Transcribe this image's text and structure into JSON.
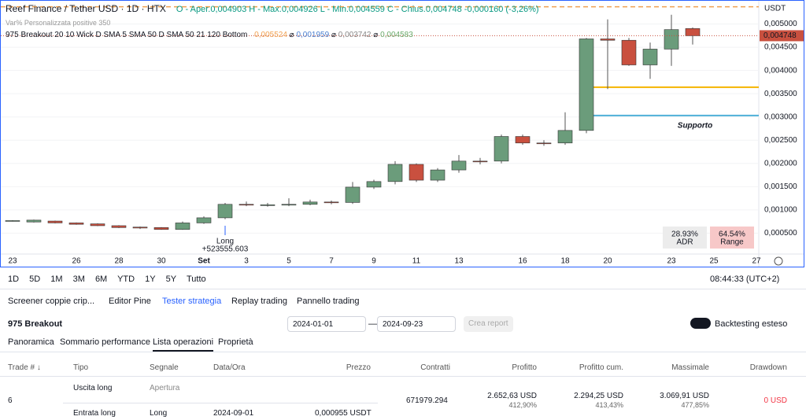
{
  "header": {
    "symbol": "Reef Finance / Tether USD · 1D · HTX",
    "ohlc": "O - Aper.0,004903  H - Max.0,004926  L - Min.0,004559  C - Chius.0,004748  -0,000160 (-3,26%)",
    "variation": "Var% Personalizzata positive 350",
    "indicator": "975 Breakout 20 10 Wick D SMA 5 SMA 50 D SMA 50 21 120 Bottom",
    "indicator_values": [
      "0,005524",
      "0,001959",
      "0,003742",
      "0,004583"
    ],
    "currency": "USDT"
  },
  "chart_data": {
    "type": "candlestick",
    "categories": [
      "23",
      null,
      null,
      "26",
      null,
      "28",
      null,
      "30",
      null,
      "Set",
      null,
      "3",
      null,
      "5",
      null,
      "7",
      null,
      "9",
      null,
      "11",
      null,
      "13",
      null,
      null,
      "16",
      null,
      "18",
      null,
      "20",
      null,
      null,
      "23",
      null,
      "25",
      null,
      "27"
    ],
    "open": [
      0.00076,
      0.00074,
      0.00076,
      0.00072,
      0.0007,
      0.00066,
      0.00063,
      0.00062,
      0.00058,
      0.00072,
      0.00083,
      0.00112,
      0.00111,
      0.00111,
      0.00112,
      0.00117,
      0.00116,
      0.00149,
      0.00161,
      0.00198,
      0.00164,
      0.00186,
      0.00205,
      0.00205,
      0.00258,
      0.00244,
      0.00244,
      0.00271,
      0.00468,
      0.00465,
      0.00412,
      0.00446,
      0.004903,
      null,
      null,
      null
    ],
    "high": [
      0.00078,
      0.00079,
      0.00077,
      0.00073,
      0.00071,
      0.00067,
      0.00064,
      0.00063,
      0.00075,
      0.00086,
      0.00115,
      0.00118,
      0.00115,
      0.00125,
      0.00122,
      0.0012,
      0.0016,
      0.00165,
      0.00205,
      0.002,
      0.0019,
      0.00218,
      0.00212,
      0.00262,
      0.00262,
      0.0025,
      0.0031,
      0.0047,
      0.0051,
      0.0047,
      0.0046,
      0.0052,
      0.004926,
      null,
      null,
      null
    ],
    "low": [
      0.00075,
      0.00073,
      0.00071,
      0.00068,
      0.00065,
      0.00061,
      0.00059,
      0.00057,
      0.00057,
      0.0007,
      0.0008,
      0.00108,
      0.00107,
      0.00108,
      0.0011,
      0.00112,
      0.00113,
      0.00145,
      0.00155,
      0.0016,
      0.0016,
      0.0018,
      0.00198,
      0.002,
      0.0024,
      0.00238,
      0.0024,
      0.00265,
      0.0036,
      0.0041,
      0.00382,
      0.0041,
      0.004559,
      null,
      null,
      null
    ],
    "close": [
      0.00077,
      0.00078,
      0.00072,
      0.00069,
      0.00066,
      0.00062,
      0.00061,
      0.00058,
      0.00072,
      0.00083,
      0.00112,
      0.00111,
      0.00111,
      0.00112,
      0.00117,
      0.00116,
      0.00149,
      0.00161,
      0.00198,
      0.00164,
      0.00186,
      0.00205,
      0.00204,
      0.00258,
      0.00244,
      0.00243,
      0.00271,
      0.00468,
      0.00465,
      0.00412,
      0.00446,
      0.00488,
      0.004748,
      null,
      null,
      null
    ],
    "up_color": "#6b9c7b",
    "down_color": "#c9503f",
    "ylim": [
      5e-05,
      0.0055
    ],
    "yticks": [
      {
        "value": 0.0005,
        "label": "0,000500"
      },
      {
        "value": 0.001,
        "label": "0,001000"
      },
      {
        "value": 0.0015,
        "label": "0,001500"
      },
      {
        "value": 0.002,
        "label": "0,002000"
      },
      {
        "value": 0.0025,
        "label": "0,002500"
      },
      {
        "value": 0.003,
        "label": "0,003000"
      },
      {
        "value": 0.0035,
        "label": "0,003500"
      },
      {
        "value": 0.004,
        "label": "0,004000"
      },
      {
        "value": 0.0045,
        "label": "0,004500"
      },
      {
        "value": 0.005,
        "label": "0,005000"
      }
    ],
    "last_price": {
      "value": 0.004748,
      "label": "0,004748"
    },
    "levels": [
      {
        "value": 0.00537,
        "color": "#f0a050",
        "style": "dashed"
      },
      {
        "value": 0.00364,
        "color": "#f5b400",
        "style": "solid"
      },
      {
        "value": 0.00303,
        "color": "#4fb0d8",
        "style": "solid",
        "label": "Supporto"
      }
    ],
    "trade_label": {
      "title": "Long",
      "amount": "+523555.603"
    },
    "stats": [
      {
        "value": "28.93%",
        "label": "ADR"
      },
      {
        "value": "64.54%",
        "label": "Range"
      }
    ]
  },
  "timebar": {
    "ranges": [
      "1D",
      "5D",
      "1M",
      "3M",
      "6M",
      "YTD",
      "1Y",
      "5Y",
      "Tutto"
    ],
    "clock": "08:44:33 (UTC+2)"
  },
  "tabs": [
    "Screener coppie crip...",
    "Editor Pine",
    "Tester strategia",
    "Replay trading",
    "Pannello trading"
  ],
  "strategy": {
    "name": "975 Breakout",
    "start": "2024-01-01",
    "end": "2024-09-23",
    "report": "Crea report",
    "extended": "Backtesting esteso"
  },
  "subtabs": [
    "Panoramica",
    "Sommario performance",
    "Lista operazioni",
    "Proprietà"
  ],
  "table": {
    "headers": [
      "Trade # ↓",
      "Tipo",
      "Segnale",
      "Data/Ora",
      "Prezzo",
      "Contratti",
      "Profitto",
      "Profitto cum.",
      "Massimale",
      "Drawdown"
    ],
    "row": {
      "trade": "6",
      "exit": {
        "type": "Uscita long",
        "signal": "Apertura"
      },
      "entry": {
        "type": "Entrata long",
        "signal": "Long",
        "date": "2024-09-01",
        "price": "0,000955 USDT"
      },
      "contracts": "671979.294",
      "profit": "2.652,63 USD",
      "profit_pct": "412,90%",
      "cum": "2.294,25 USD",
      "cum_pct": "413,43%",
      "max": "3.069,91 USD",
      "max_pct": "477,85%",
      "drawdown": "0 USD"
    }
  }
}
